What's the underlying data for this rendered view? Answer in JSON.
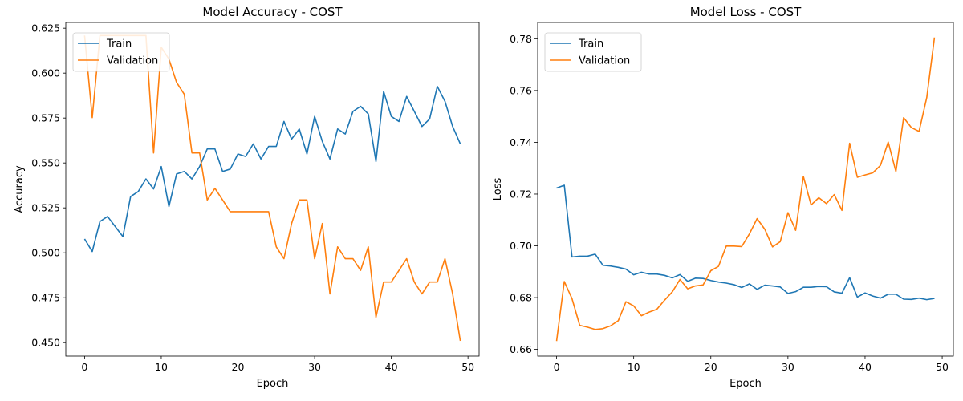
{
  "chart_data": [
    {
      "type": "line",
      "title": "Model Accuracy - COST",
      "xlabel": "Epoch",
      "ylabel": "Accuracy",
      "xlim": [
        -2.45,
        51.45
      ],
      "ylim": [
        0.4425,
        0.6282
      ],
      "xticks": [
        0,
        10,
        20,
        30,
        40,
        50
      ],
      "yticks": [
        0.45,
        0.475,
        0.5,
        0.525,
        0.55,
        0.575,
        0.6,
        0.625
      ],
      "ytick_labels": [
        "0.450",
        "0.475",
        "0.500",
        "0.525",
        "0.550",
        "0.575",
        "0.600",
        "0.625"
      ],
      "legend_position": "upper-left",
      "x": [
        0,
        1,
        2,
        3,
        4,
        5,
        6,
        7,
        8,
        9,
        10,
        11,
        12,
        13,
        14,
        15,
        16,
        17,
        18,
        19,
        20,
        21,
        22,
        23,
        24,
        25,
        26,
        27,
        28,
        29,
        30,
        31,
        32,
        33,
        34,
        35,
        36,
        37,
        38,
        39,
        40,
        41,
        42,
        43,
        44,
        45,
        46,
        47,
        48,
        49
      ],
      "series": [
        {
          "name": "Train",
          "color": "#1f77b4",
          "values": [
            0.5077,
            0.5007,
            0.5174,
            0.5202,
            0.5146,
            0.509,
            0.5313,
            0.5341,
            0.5411,
            0.5355,
            0.548,
            0.5257,
            0.5439,
            0.5453,
            0.5411,
            0.548,
            0.5578,
            0.5578,
            0.5453,
            0.5466,
            0.555,
            0.5536,
            0.5606,
            0.5522,
            0.5592,
            0.5592,
            0.5731,
            0.5633,
            0.5689,
            0.555,
            0.5759,
            0.562,
            0.5522,
            0.5689,
            0.5661,
            0.5787,
            0.5815,
            0.5773,
            0.5508,
            0.5898,
            0.5759,
            0.5731,
            0.587,
            0.5787,
            0.5703,
            0.5745,
            0.5926,
            0.5843,
            0.5703,
            0.5606
          ]
        },
        {
          "name": "Validation",
          "color": "#ff7f0e",
          "values": [
            0.6209,
            0.5752,
            0.6209,
            0.6209,
            0.6209,
            0.6209,
            0.6209,
            0.6209,
            0.6209,
            0.5556,
            0.6144,
            0.6078,
            0.5948,
            0.5882,
            0.5556,
            0.5556,
            0.5294,
            0.5359,
            0.5294,
            0.5229,
            0.5229,
            0.5229,
            0.5229,
            0.5229,
            0.5229,
            0.5033,
            0.4967,
            0.5163,
            0.5294,
            0.5294,
            0.4967,
            0.5163,
            0.4771,
            0.5033,
            0.4967,
            0.4967,
            0.4902,
            0.5033,
            0.4641,
            0.4837,
            0.4837,
            0.4902,
            0.4967,
            0.4837,
            0.4771,
            0.4837,
            0.4837,
            0.4967,
            0.4771,
            0.451
          ]
        }
      ]
    },
    {
      "type": "line",
      "title": "Model Loss - COST",
      "xlabel": "Epoch",
      "ylabel": "Loss",
      "xlim": [
        -2.45,
        51.45
      ],
      "ylim": [
        0.6574,
        0.7863
      ],
      "xticks": [
        0,
        10,
        20,
        30,
        40,
        50
      ],
      "yticks": [
        0.66,
        0.68,
        0.7,
        0.72,
        0.74,
        0.76,
        0.78
      ],
      "ytick_labels": [
        "0.66",
        "0.68",
        "0.70",
        "0.72",
        "0.74",
        "0.76",
        "0.78"
      ],
      "legend_position": "upper-left",
      "x": [
        0,
        1,
        2,
        3,
        4,
        5,
        6,
        7,
        8,
        9,
        10,
        11,
        12,
        13,
        14,
        15,
        16,
        17,
        18,
        19,
        20,
        21,
        22,
        23,
        24,
        25,
        26,
        27,
        28,
        29,
        30,
        31,
        32,
        33,
        34,
        35,
        36,
        37,
        38,
        39,
        40,
        41,
        42,
        43,
        44,
        45,
        46,
        47,
        48,
        49
      ],
      "series": [
        {
          "name": "Train",
          "color": "#1f77b4",
          "values": [
            0.7223,
            0.7234,
            0.6957,
            0.696,
            0.696,
            0.6968,
            0.6925,
            0.6922,
            0.6917,
            0.691,
            0.6888,
            0.6898,
            0.6891,
            0.6891,
            0.6886,
            0.6876,
            0.6889,
            0.6863,
            0.6875,
            0.6874,
            0.6866,
            0.686,
            0.6856,
            0.685,
            0.6839,
            0.6853,
            0.6832,
            0.6848,
            0.6845,
            0.6841,
            0.6816,
            0.6823,
            0.684,
            0.684,
            0.6843,
            0.6842,
            0.6822,
            0.6817,
            0.6877,
            0.6802,
            0.6818,
            0.6806,
            0.6798,
            0.6813,
            0.6813,
            0.6794,
            0.6793,
            0.6798,
            0.6792,
            0.6797
          ]
        },
        {
          "name": "Validation",
          "color": "#ff7f0e",
          "values": [
            0.6632,
            0.6862,
            0.6796,
            0.6693,
            0.6686,
            0.6677,
            0.668,
            0.6691,
            0.6711,
            0.6784,
            0.6768,
            0.673,
            0.6744,
            0.6755,
            0.679,
            0.6822,
            0.687,
            0.6834,
            0.6845,
            0.6849,
            0.6904,
            0.6921,
            0.6999,
            0.6999,
            0.6997,
            0.7046,
            0.7105,
            0.7064,
            0.6996,
            0.7016,
            0.7128,
            0.706,
            0.7268,
            0.7158,
            0.7186,
            0.7163,
            0.7198,
            0.7137,
            0.7396,
            0.7265,
            0.7274,
            0.7282,
            0.7311,
            0.7401,
            0.7287,
            0.7495,
            0.7457,
            0.7442,
            0.7573,
            0.7805
          ]
        }
      ]
    }
  ]
}
